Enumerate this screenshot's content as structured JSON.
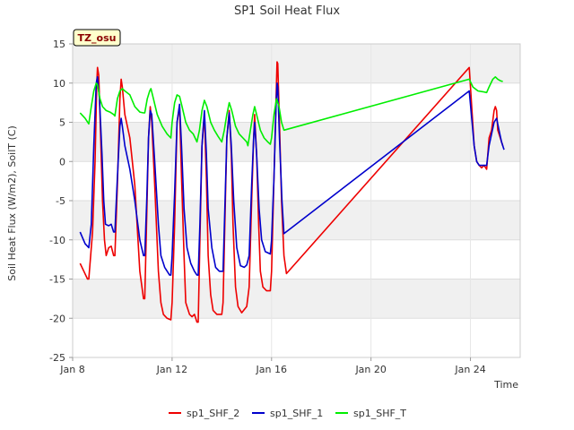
{
  "chart_data": {
    "type": "line",
    "title": "SP1 Soil Heat Flux",
    "xlabel": "Time",
    "ylabel": "Soil Heat Flux (W/m2), SoilT (C)",
    "badge": "TZ_osu",
    "xlim": [
      0,
      18
    ],
    "ylim": [
      -25,
      15
    ],
    "x_ticks": [
      {
        "value": 0,
        "label": "Jan 8"
      },
      {
        "value": 4,
        "label": "Jan 12"
      },
      {
        "value": 8,
        "label": "Jan 16"
      },
      {
        "value": 12,
        "label": "Jan 20"
      },
      {
        "value": 16,
        "label": "Jan 24"
      }
    ],
    "y_ticks": [
      -25,
      -20,
      -15,
      -10,
      -5,
      0,
      5,
      10,
      15
    ],
    "x_unit": "days after Jan 8",
    "legend_position": "bottom",
    "grid": true,
    "series": [
      {
        "name": "sp1_SHF_2",
        "color": "#ee0000",
        "points": [
          [
            0.3,
            -13
          ],
          [
            0.45,
            -14
          ],
          [
            0.6,
            -15
          ],
          [
            0.65,
            -15
          ],
          [
            0.8,
            -9
          ],
          [
            0.9,
            0
          ],
          [
            0.97,
            10
          ],
          [
            1.0,
            12
          ],
          [
            1.05,
            11
          ],
          [
            1.12,
            4
          ],
          [
            1.2,
            -5
          ],
          [
            1.28,
            -10
          ],
          [
            1.35,
            -12
          ],
          [
            1.45,
            -11
          ],
          [
            1.55,
            -10.8
          ],
          [
            1.65,
            -12
          ],
          [
            1.7,
            -12
          ],
          [
            1.8,
            -3
          ],
          [
            1.9,
            8
          ],
          [
            1.95,
            10.5
          ],
          [
            2.0,
            9.5
          ],
          [
            2.1,
            6
          ],
          [
            2.3,
            3
          ],
          [
            2.5,
            -3
          ],
          [
            2.7,
            -14
          ],
          [
            2.85,
            -17.5
          ],
          [
            2.9,
            -17.5
          ],
          [
            2.98,
            -7
          ],
          [
            3.05,
            3
          ],
          [
            3.12,
            7
          ],
          [
            3.18,
            5
          ],
          [
            3.3,
            -3
          ],
          [
            3.45,
            -14
          ],
          [
            3.55,
            -18
          ],
          [
            3.65,
            -19.5
          ],
          [
            3.8,
            -20
          ],
          [
            3.95,
            -20.2
          ],
          [
            4.0,
            -18
          ],
          [
            4.1,
            -8
          ],
          [
            4.2,
            5
          ],
          [
            4.3,
            7
          ],
          [
            4.38,
            -2
          ],
          [
            4.48,
            -12
          ],
          [
            4.55,
            -18
          ],
          [
            4.7,
            -19.5
          ],
          [
            4.8,
            -19.8
          ],
          [
            4.9,
            -19.5
          ],
          [
            5.0,
            -20.5
          ],
          [
            5.05,
            -20.5
          ],
          [
            5.12,
            -10
          ],
          [
            5.2,
            2
          ],
          [
            5.3,
            6
          ],
          [
            5.38,
            -2
          ],
          [
            5.45,
            -12
          ],
          [
            5.55,
            -17
          ],
          [
            5.65,
            -19
          ],
          [
            5.8,
            -19.5
          ],
          [
            6.0,
            -19.5
          ],
          [
            6.05,
            -18
          ],
          [
            6.12,
            -8
          ],
          [
            6.2,
            3
          ],
          [
            6.3,
            6.5
          ],
          [
            6.38,
            1
          ],
          [
            6.45,
            -8
          ],
          [
            6.55,
            -16
          ],
          [
            6.65,
            -18.5
          ],
          [
            6.8,
            -19.3
          ],
          [
            7.0,
            -18.5
          ],
          [
            7.1,
            -16
          ],
          [
            7.2,
            -5
          ],
          [
            7.28,
            3
          ],
          [
            7.32,
            6
          ],
          [
            7.4,
            1
          ],
          [
            7.48,
            -8
          ],
          [
            7.55,
            -14
          ],
          [
            7.65,
            -16
          ],
          [
            7.8,
            -16.5
          ],
          [
            7.95,
            -16.5
          ],
          [
            8.0,
            -14
          ],
          [
            8.1,
            -2
          ],
          [
            8.18,
            8
          ],
          [
            8.22,
            12.7
          ],
          [
            8.25,
            12.5
          ],
          [
            8.32,
            5
          ],
          [
            8.4,
            -5
          ],
          [
            8.5,
            -12
          ],
          [
            8.6,
            -14.3
          ],
          [
            15.95,
            12
          ],
          [
            16.15,
            2
          ],
          [
            16.25,
            0
          ],
          [
            16.35,
            -0.5
          ],
          [
            16.45,
            -0.8
          ],
          [
            16.55,
            -0.5
          ],
          [
            16.65,
            -1
          ],
          [
            16.75,
            3
          ],
          [
            16.85,
            4
          ],
          [
            16.95,
            6.5
          ],
          [
            17.0,
            7
          ],
          [
            17.05,
            6.5
          ],
          [
            17.1,
            4
          ],
          [
            17.2,
            3
          ],
          [
            17.3,
            2
          ]
        ]
      },
      {
        "name": "sp1_SHF_1",
        "color": "#0000cc",
        "points": [
          [
            0.3,
            -9
          ],
          [
            0.5,
            -10.5
          ],
          [
            0.65,
            -11
          ],
          [
            0.75,
            -8
          ],
          [
            0.85,
            2
          ],
          [
            0.95,
            10
          ],
          [
            1.0,
            10.8
          ],
          [
            1.08,
            8
          ],
          [
            1.18,
            1
          ],
          [
            1.25,
            -5
          ],
          [
            1.32,
            -8
          ],
          [
            1.45,
            -8.2
          ],
          [
            1.55,
            -8
          ],
          [
            1.65,
            -9
          ],
          [
            1.7,
            -9
          ],
          [
            1.8,
            -2
          ],
          [
            1.9,
            4.5
          ],
          [
            1.95,
            5.5
          ],
          [
            2.0,
            4.5
          ],
          [
            2.1,
            2
          ],
          [
            2.3,
            -1
          ],
          [
            2.5,
            -5
          ],
          [
            2.7,
            -10
          ],
          [
            2.85,
            -12
          ],
          [
            2.9,
            -12
          ],
          [
            2.98,
            -5
          ],
          [
            3.05,
            3
          ],
          [
            3.12,
            6.5
          ],
          [
            3.18,
            6
          ],
          [
            3.3,
            0
          ],
          [
            3.45,
            -8
          ],
          [
            3.55,
            -12
          ],
          [
            3.7,
            -13.5
          ],
          [
            3.9,
            -14.5
          ],
          [
            3.95,
            -14.5
          ],
          [
            4.0,
            -12
          ],
          [
            4.1,
            -4
          ],
          [
            4.2,
            5
          ],
          [
            4.3,
            7.3
          ],
          [
            4.38,
            2
          ],
          [
            4.48,
            -6
          ],
          [
            4.6,
            -11
          ],
          [
            4.75,
            -13
          ],
          [
            4.9,
            -14
          ],
          [
            5.0,
            -14.5
          ],
          [
            5.05,
            -14.5
          ],
          [
            5.12,
            -8
          ],
          [
            5.2,
            2
          ],
          [
            5.3,
            6.5
          ],
          [
            5.38,
            1
          ],
          [
            5.45,
            -6
          ],
          [
            5.6,
            -11
          ],
          [
            5.75,
            -13.5
          ],
          [
            5.9,
            -14
          ],
          [
            6.05,
            -14
          ],
          [
            6.12,
            -6
          ],
          [
            6.2,
            3
          ],
          [
            6.3,
            6.2
          ],
          [
            6.38,
            2
          ],
          [
            6.48,
            -5
          ],
          [
            6.6,
            -11
          ],
          [
            6.75,
            -13.3
          ],
          [
            6.9,
            -13.5
          ],
          [
            7.0,
            -13.2
          ],
          [
            7.1,
            -12
          ],
          [
            7.2,
            -3
          ],
          [
            7.28,
            3
          ],
          [
            7.32,
            5
          ],
          [
            7.4,
            1
          ],
          [
            7.5,
            -6
          ],
          [
            7.6,
            -10
          ],
          [
            7.75,
            -11.5
          ],
          [
            7.95,
            -11.8
          ],
          [
            8.0,
            -10
          ],
          [
            8.1,
            -2
          ],
          [
            8.18,
            7
          ],
          [
            8.22,
            10
          ],
          [
            8.25,
            9.5
          ],
          [
            8.32,
            3
          ],
          [
            8.42,
            -5
          ],
          [
            8.5,
            -9.2
          ],
          [
            15.95,
            9
          ],
          [
            16.15,
            2
          ],
          [
            16.25,
            0
          ],
          [
            16.35,
            -0.5
          ],
          [
            16.5,
            -0.5
          ],
          [
            16.65,
            -0.5
          ],
          [
            16.75,
            2
          ],
          [
            16.85,
            3.5
          ],
          [
            16.95,
            5
          ],
          [
            17.05,
            5.5
          ],
          [
            17.15,
            4
          ],
          [
            17.25,
            2.5
          ],
          [
            17.35,
            1.5
          ]
        ]
      },
      {
        "name": "sp1_SHF_T",
        "color": "#00ee00",
        "points": [
          [
            0.3,
            6.2
          ],
          [
            0.5,
            5.5
          ],
          [
            0.65,
            4.8
          ],
          [
            0.75,
            7
          ],
          [
            0.85,
            9
          ],
          [
            0.95,
            10
          ],
          [
            1.0,
            9.8
          ],
          [
            1.1,
            8
          ],
          [
            1.2,
            7
          ],
          [
            1.35,
            6.5
          ],
          [
            1.5,
            6.3
          ],
          [
            1.65,
            6
          ],
          [
            1.7,
            5.8
          ],
          [
            1.8,
            8
          ],
          [
            1.9,
            9
          ],
          [
            2.0,
            9.3
          ],
          [
            2.1,
            9
          ],
          [
            2.3,
            8.5
          ],
          [
            2.5,
            7
          ],
          [
            2.7,
            6.3
          ],
          [
            2.85,
            6.2
          ],
          [
            2.9,
            6.2
          ],
          [
            3.0,
            8
          ],
          [
            3.1,
            9
          ],
          [
            3.15,
            9.3
          ],
          [
            3.25,
            8
          ],
          [
            3.4,
            6
          ],
          [
            3.6,
            4.5
          ],
          [
            3.8,
            3.5
          ],
          [
            3.95,
            3
          ],
          [
            4.0,
            5
          ],
          [
            4.1,
            7.5
          ],
          [
            4.2,
            8.5
          ],
          [
            4.3,
            8.3
          ],
          [
            4.4,
            7
          ],
          [
            4.55,
            5
          ],
          [
            4.7,
            4
          ],
          [
            4.85,
            3.5
          ],
          [
            5.0,
            2.5
          ],
          [
            5.1,
            4
          ],
          [
            5.2,
            6.5
          ],
          [
            5.3,
            7.8
          ],
          [
            5.4,
            7
          ],
          [
            5.55,
            5
          ],
          [
            5.7,
            4
          ],
          [
            5.85,
            3.2
          ],
          [
            6.0,
            2.5
          ],
          [
            6.1,
            4
          ],
          [
            6.2,
            6
          ],
          [
            6.3,
            7.5
          ],
          [
            6.4,
            6.5
          ],
          [
            6.55,
            4.5
          ],
          [
            6.7,
            3.5
          ],
          [
            6.85,
            3
          ],
          [
            7.0,
            2.5
          ],
          [
            7.05,
            2
          ],
          [
            7.15,
            4
          ],
          [
            7.25,
            6
          ],
          [
            7.32,
            7
          ],
          [
            7.4,
            6
          ],
          [
            7.55,
            4
          ],
          [
            7.7,
            3
          ],
          [
            7.85,
            2.5
          ],
          [
            7.95,
            2.2
          ],
          [
            8.0,
            3
          ],
          [
            8.1,
            6
          ],
          [
            8.2,
            8
          ],
          [
            8.3,
            7
          ],
          [
            8.4,
            5
          ],
          [
            8.5,
            4
          ],
          [
            15.95,
            10.5
          ],
          [
            16.1,
            9.5
          ],
          [
            16.3,
            9
          ],
          [
            16.5,
            8.9
          ],
          [
            16.65,
            8.8
          ],
          [
            16.75,
            9.5
          ],
          [
            16.9,
            10.5
          ],
          [
            17.0,
            10.8
          ],
          [
            17.1,
            10.5
          ],
          [
            17.2,
            10.3
          ],
          [
            17.3,
            10.2
          ]
        ]
      }
    ]
  }
}
